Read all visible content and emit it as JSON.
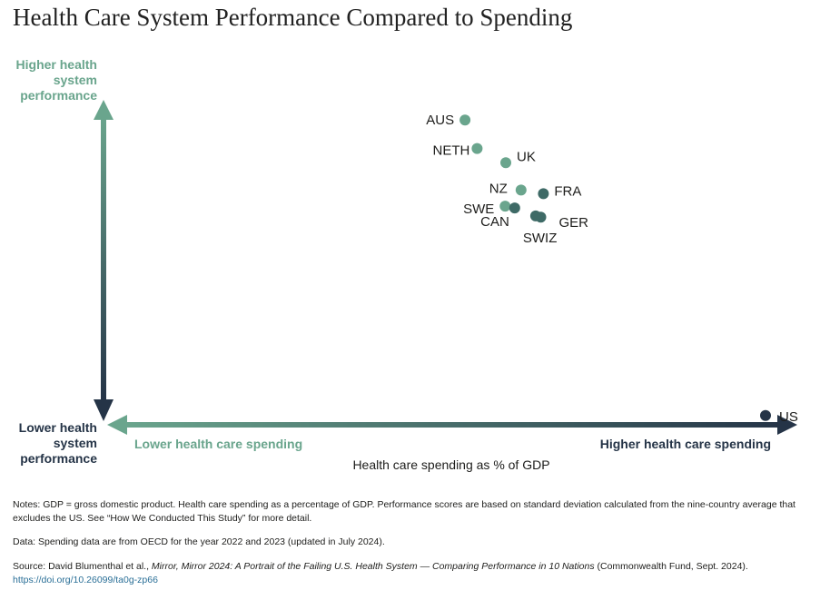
{
  "title": "Health Care System Performance Compared to Spending",
  "colors": {
    "teal": "#6aa58d",
    "navy": "#253447",
    "mid": "#3e6a66",
    "link": "#2a6f97"
  },
  "axes": {
    "y_top": [
      "Higher health",
      "system",
      "performance"
    ],
    "y_bottom": [
      "Lower health",
      "system",
      "performance"
    ],
    "x_left": "Lower health care spending",
    "x_right": "Higher health care spending",
    "x_title": "Health care spending as % of GDP"
  },
  "chart_data": {
    "type": "scatter",
    "title": "Health Care System Performance Compared to Spending",
    "xlabel": "Health care spending as % of GDP",
    "ylabel": "Health system performance",
    "xlim": [
      0,
      100
    ],
    "ylim": [
      0,
      100
    ],
    "points": [
      {
        "label": "AUS",
        "x": 52.8,
        "y": 89.0,
        "color": "#6aa58d"
      },
      {
        "label": "NETH",
        "x": 54.7,
        "y": 81.2,
        "color": "#6aa58d"
      },
      {
        "label": "UK",
        "x": 59.2,
        "y": 77.3,
        "color": "#6aa58d"
      },
      {
        "label": "NZ",
        "x": 61.6,
        "y": 69.8,
        "color": "#6aa58d"
      },
      {
        "label": "FRA",
        "x": 65.1,
        "y": 68.8,
        "color": "#3e6a66"
      },
      {
        "label": "SWE",
        "x": 59.1,
        "y": 65.4,
        "color": "#6aa58d"
      },
      {
        "label": "CAN",
        "x": 60.6,
        "y": 64.9,
        "color": "#3e6a66"
      },
      {
        "label": "GER",
        "x": 64.7,
        "y": 62.4,
        "color": "#3e6a66"
      },
      {
        "label": "SWIZ",
        "x": 63.9,
        "y": 62.7,
        "color": "#3e6a66"
      },
      {
        "label": "US",
        "x": 100.0,
        "y": 8.0,
        "color": "#253447"
      }
    ]
  },
  "notes": {
    "notes_text": "Notes: GDP = gross domestic product. Health care spending as a percentage of GDP. Performance scores are based on standard deviation calculated from the nine-country average that excludes the US. See “How We Conducted This Study” for more detail.",
    "data_text": "Data: Spending data are from OECD for the year 2022 and 2023 (updated in July 2024).",
    "source_prefix": "Source: David Blumenthal et al., ",
    "source_title": "Mirror, Mirror 2024: A Portrait of the Failing U.S. Health System — Comparing Performance in 10 Nations",
    "source_suffix": " (Commonwealth Fund, Sept. 2024). ",
    "source_link": "https://doi.org/10.26099/ta0g-zp66"
  }
}
